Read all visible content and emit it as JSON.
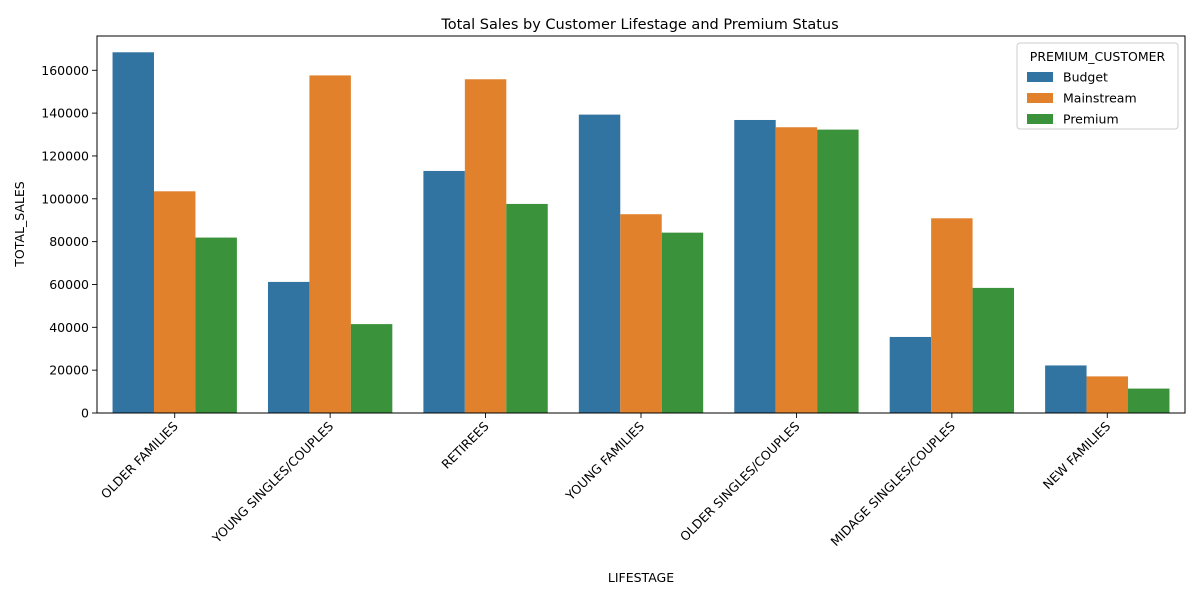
{
  "chart_data": {
    "type": "bar",
    "title": "Total Sales by Customer Lifestage and Premium Status",
    "xlabel": "LIFESTAGE",
    "ylabel": "TOTAL_SALES",
    "categories": [
      "OLDER FAMILIES",
      "YOUNG SINGLES/COUPLES",
      "RETIREES",
      "YOUNG FAMILIES",
      "OLDER SINGLES/COUPLES",
      "MIDAGE SINGLES/COUPLES",
      "NEW FAMILIES"
    ],
    "series": [
      {
        "name": "Budget",
        "color": "#3274a1",
        "values": [
          168400,
          61200,
          113000,
          139300,
          136800,
          35500,
          22200
        ]
      },
      {
        "name": "Mainstream",
        "color": "#e1812c",
        "values": [
          103500,
          157600,
          155800,
          92800,
          133400,
          90900,
          17100
        ]
      },
      {
        "name": "Premium",
        "color": "#3a923a",
        "values": [
          81900,
          41500,
          97600,
          84200,
          132300,
          58400,
          11400
        ]
      }
    ],
    "ylim": [
      0,
      176000
    ],
    "yticks": [
      0,
      20000,
      40000,
      60000,
      80000,
      100000,
      120000,
      140000,
      160000
    ],
    "legend": {
      "title": "PREMIUM_CUSTOMER",
      "position": "top-right"
    },
    "grid": false
  }
}
